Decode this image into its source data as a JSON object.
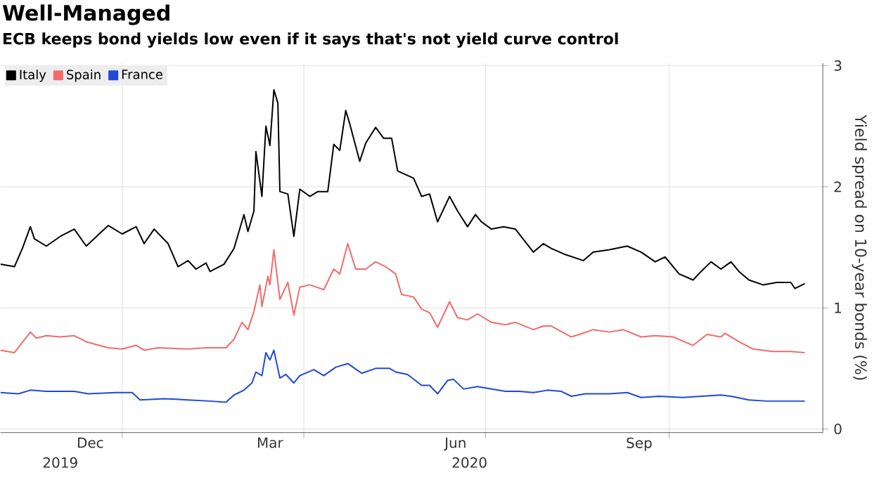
{
  "chart_data": {
    "type": "line",
    "title": "Well-Managed",
    "subtitle": "ECB keeps bond yields low even if it says that's not yield curve control",
    "ylabel": "Yield spread on 10-year bonds (%)",
    "xlim": [
      "2019-11-01",
      "2020-12-17"
    ],
    "xticks": [
      {
        "value": "2020-01-01",
        "label": null
      },
      {
        "value": "2020-04-01",
        "label": null
      },
      {
        "value": "2020-07-01",
        "label": null
      },
      {
        "value": "2020-10-01",
        "label": null
      },
      {
        "value": "2019-12-16",
        "label": "Dec"
      },
      {
        "value": "2020-03-15",
        "label": "Mar"
      },
      {
        "value": "2020-06-16",
        "label": "Jun"
      },
      {
        "value": "2020-09-16",
        "label": "Sep"
      }
    ],
    "x2lim": [
      "2019-11-01",
      "2020-12-17"
    ],
    "x2ticks": [
      {
        "value": "2019-12-01",
        "label": "2019"
      },
      {
        "value": "2020-06-23",
        "label": "2020"
      }
    ],
    "ylim": [
      -0.03,
      3.02
    ],
    "yticks": [
      0,
      1,
      2,
      3
    ],
    "grid": true,
    "legend": "top left",
    "series": [
      {
        "name": "Italy",
        "color": "#000000",
        "x": [
          "2019-11-01",
          "2019-11-08",
          "2019-11-12",
          "2019-11-16",
          "2019-11-18",
          "2019-11-24",
          "2019-12-01",
          "2019-12-08",
          "2019-12-14",
          "2019-12-25",
          "2020-01-01",
          "2020-01-08",
          "2020-01-12",
          "2020-01-17",
          "2020-01-24",
          "2020-01-29",
          "2020-02-03",
          "2020-02-07",
          "2020-02-12",
          "2020-02-14",
          "2020-02-21",
          "2020-02-26",
          "2020-03-02",
          "2020-03-04",
          "2020-03-07",
          "2020-03-08",
          "2020-03-11",
          "2020-03-13",
          "2020-03-15",
          "2020-03-17",
          "2020-03-19",
          "2020-03-20",
          "2020-03-24",
          "2020-03-27",
          "2020-03-30",
          "2020-04-04",
          "2020-04-08",
          "2020-04-13",
          "2020-04-16",
          "2020-04-19",
          "2020-04-22",
          "2020-04-24",
          "2020-04-29",
          "2020-05-02",
          "2020-05-07",
          "2020-05-11",
          "2020-05-15",
          "2020-05-18",
          "2020-05-26",
          "2020-05-30",
          "2020-06-03",
          "2020-06-07",
          "2020-06-13",
          "2020-06-17",
          "2020-06-22",
          "2020-06-26",
          "2020-06-29",
          "2020-07-04",
          "2020-07-10",
          "2020-07-16",
          "2020-07-25",
          "2020-07-30",
          "2020-08-03",
          "2020-08-10",
          "2020-08-19",
          "2020-08-24",
          "2020-09-01",
          "2020-09-10",
          "2020-09-17",
          "2020-09-24",
          "2020-09-29",
          "2020-10-06",
          "2020-10-13",
          "2020-10-17",
          "2020-10-22",
          "2020-10-27",
          "2020-11-01",
          "2020-11-05",
          "2020-11-10",
          "2020-11-17",
          "2020-11-24",
          "2020-12-01",
          "2020-12-03",
          "2020-12-08"
        ],
        "values": [
          1.36,
          1.34,
          1.49,
          1.67,
          1.57,
          1.51,
          1.59,
          1.65,
          1.51,
          1.68,
          1.61,
          1.67,
          1.53,
          1.65,
          1.53,
          1.34,
          1.39,
          1.32,
          1.37,
          1.3,
          1.36,
          1.49,
          1.77,
          1.63,
          1.8,
          2.29,
          1.92,
          2.5,
          2.34,
          2.8,
          2.69,
          1.96,
          1.94,
          1.59,
          1.98,
          1.92,
          1.96,
          1.96,
          2.35,
          2.3,
          2.63,
          2.52,
          2.21,
          2.36,
          2.49,
          2.4,
          2.4,
          2.13,
          2.07,
          1.92,
          1.94,
          1.71,
          1.92,
          1.8,
          1.67,
          1.77,
          1.71,
          1.65,
          1.67,
          1.65,
          1.46,
          1.53,
          1.49,
          1.44,
          1.39,
          1.46,
          1.48,
          1.51,
          1.46,
          1.38,
          1.42,
          1.28,
          1.23,
          1.3,
          1.38,
          1.32,
          1.38,
          1.3,
          1.23,
          1.19,
          1.21,
          1.21,
          1.16,
          1.2
        ]
      },
      {
        "name": "Spain",
        "color": "#f26b6b",
        "x": [
          "2019-11-01",
          "2019-11-08",
          "2019-11-16",
          "2019-11-19",
          "2019-11-24",
          "2019-12-01",
          "2019-12-08",
          "2019-12-14",
          "2019-12-25",
          "2020-01-01",
          "2020-01-08",
          "2020-01-12",
          "2020-01-19",
          "2020-02-03",
          "2020-02-12",
          "2020-02-22",
          "2020-02-26",
          "2020-03-01",
          "2020-03-04",
          "2020-03-07",
          "2020-03-10",
          "2020-03-11",
          "2020-03-14",
          "2020-03-15",
          "2020-03-17",
          "2020-03-20",
          "2020-03-24",
          "2020-03-27",
          "2020-03-30",
          "2020-04-04",
          "2020-04-11",
          "2020-04-16",
          "2020-04-19",
          "2020-04-23",
          "2020-04-27",
          "2020-05-02",
          "2020-05-07",
          "2020-05-12",
          "2020-05-17",
          "2020-05-20",
          "2020-05-26",
          "2020-05-30",
          "2020-06-03",
          "2020-06-07",
          "2020-06-13",
          "2020-06-17",
          "2020-06-22",
          "2020-06-27",
          "2020-07-04",
          "2020-07-11",
          "2020-07-16",
          "2020-07-25",
          "2020-07-30",
          "2020-08-03",
          "2020-08-13",
          "2020-08-17",
          "2020-08-24",
          "2020-09-01",
          "2020-09-08",
          "2020-09-17",
          "2020-09-24",
          "2020-10-03",
          "2020-10-13",
          "2020-10-20",
          "2020-10-27",
          "2020-10-29",
          "2020-11-05",
          "2020-11-12",
          "2020-11-22",
          "2020-12-01",
          "2020-12-08"
        ],
        "values": [
          0.65,
          0.63,
          0.8,
          0.75,
          0.77,
          0.76,
          0.77,
          0.72,
          0.67,
          0.66,
          0.69,
          0.65,
          0.67,
          0.66,
          0.67,
          0.67,
          0.74,
          0.88,
          0.82,
          0.97,
          1.19,
          1.01,
          1.26,
          1.19,
          1.48,
          1.07,
          1.21,
          0.94,
          1.17,
          1.19,
          1.15,
          1.32,
          1.28,
          1.53,
          1.32,
          1.32,
          1.38,
          1.34,
          1.28,
          1.11,
          1.09,
          0.99,
          0.96,
          0.84,
          1.05,
          0.92,
          0.9,
          0.95,
          0.88,
          0.86,
          0.88,
          0.82,
          0.85,
          0.85,
          0.76,
          0.78,
          0.82,
          0.8,
          0.82,
          0.76,
          0.77,
          0.76,
          0.69,
          0.78,
          0.76,
          0.79,
          0.72,
          0.66,
          0.64,
          0.64,
          0.63
        ]
      },
      {
        "name": "France",
        "color": "#1f48d8",
        "x": [
          "2019-11-01",
          "2019-11-10",
          "2019-11-16",
          "2019-11-24",
          "2019-12-08",
          "2019-12-15",
          "2019-12-29",
          "2020-01-06",
          "2020-01-10",
          "2020-01-22",
          "2020-02-03",
          "2020-02-14",
          "2020-02-22",
          "2020-02-26",
          "2020-03-02",
          "2020-03-06",
          "2020-03-08",
          "2020-03-11",
          "2020-03-13",
          "2020-03-15",
          "2020-03-17",
          "2020-03-20",
          "2020-03-23",
          "2020-03-27",
          "2020-03-30",
          "2020-04-06",
          "2020-04-11",
          "2020-04-17",
          "2020-04-23",
          "2020-04-30",
          "2020-05-07",
          "2020-05-14",
          "2020-05-17",
          "2020-05-23",
          "2020-05-30",
          "2020-06-03",
          "2020-06-07",
          "2020-06-12",
          "2020-06-15",
          "2020-06-20",
          "2020-06-27",
          "2020-07-04",
          "2020-07-11",
          "2020-07-18",
          "2020-07-25",
          "2020-08-01",
          "2020-08-08",
          "2020-08-13",
          "2020-08-20",
          "2020-09-01",
          "2020-09-10",
          "2020-09-17",
          "2020-09-26",
          "2020-10-08",
          "2020-10-17",
          "2020-10-27",
          "2020-11-01",
          "2020-11-10",
          "2020-11-19",
          "2020-11-29",
          "2020-12-08"
        ],
        "values": [
          0.3,
          0.29,
          0.32,
          0.31,
          0.31,
          0.29,
          0.3,
          0.3,
          0.24,
          0.25,
          0.24,
          0.23,
          0.22,
          0.28,
          0.32,
          0.38,
          0.47,
          0.44,
          0.63,
          0.57,
          0.65,
          0.42,
          0.45,
          0.38,
          0.44,
          0.49,
          0.44,
          0.51,
          0.54,
          0.46,
          0.5,
          0.5,
          0.47,
          0.45,
          0.36,
          0.36,
          0.29,
          0.4,
          0.41,
          0.33,
          0.35,
          0.33,
          0.31,
          0.31,
          0.3,
          0.32,
          0.31,
          0.27,
          0.29,
          0.29,
          0.3,
          0.26,
          0.27,
          0.26,
          0.27,
          0.28,
          0.27,
          0.24,
          0.23,
          0.23,
          0.23
        ]
      }
    ]
  }
}
